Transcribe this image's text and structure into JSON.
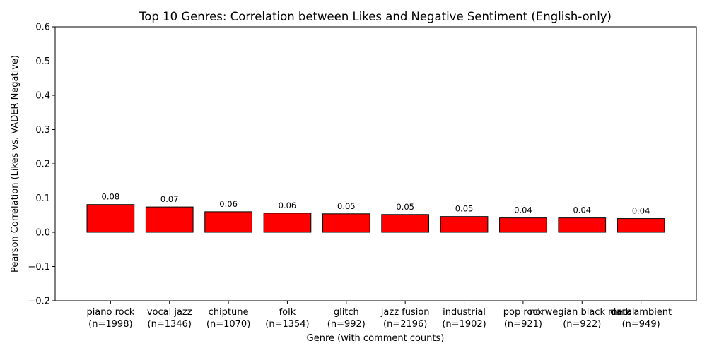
{
  "chart_data": {
    "type": "bar",
    "title": "Top 10 Genres: Correlation between Likes and Negative Sentiment (English-only)",
    "xlabel": "Genre (with comment counts)",
    "ylabel": "Pearson Correlation (Likes vs. VADER Negative)",
    "ylim": [
      -0.2,
      0.6
    ],
    "yticks": [
      -0.2,
      -0.1,
      0.0,
      0.1,
      0.2,
      0.3,
      0.4,
      0.5,
      0.6
    ],
    "ytick_labels": [
      "−0.2",
      "−0.1",
      "0.0",
      "0.1",
      "0.2",
      "0.3",
      "0.4",
      "0.5",
      "0.6"
    ],
    "categories": [
      "piano rock",
      "vocal jazz",
      "chiptune",
      "folk",
      "glitch",
      "jazz fusion",
      "industrial",
      "pop rock",
      "norwegian black metal",
      "dark ambient"
    ],
    "counts": [
      "(n=1998)",
      "(n=1346)",
      "(n=1070)",
      "(n=1354)",
      "(n=992)",
      "(n=2196)",
      "(n=1902)",
      "(n=921)",
      "(n=922)",
      "(n=949)"
    ],
    "values": [
      0.081,
      0.074,
      0.06,
      0.056,
      0.054,
      0.052,
      0.046,
      0.042,
      0.042,
      0.04
    ],
    "value_labels": [
      "0.08",
      "0.07",
      "0.06",
      "0.06",
      "0.05",
      "0.05",
      "0.05",
      "0.04",
      "0.04",
      "0.04"
    ],
    "bar_color": "#ff0000",
    "edge_color": "#000000",
    "grid": false,
    "legend": "none"
  }
}
